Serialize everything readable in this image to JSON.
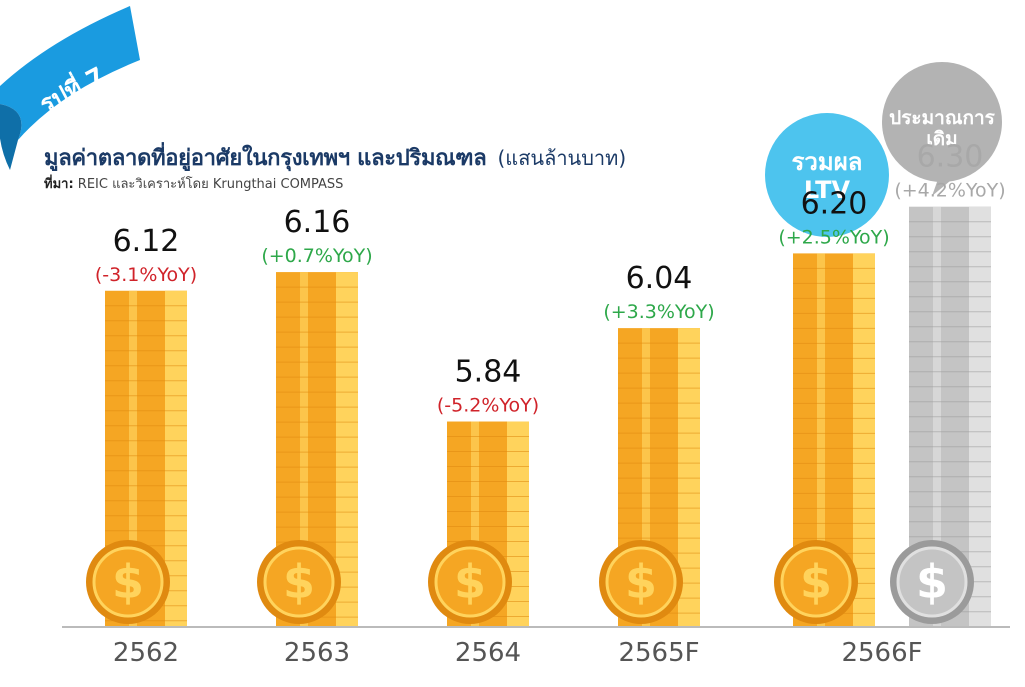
{
  "badge": {
    "text": "รูปที่ 7",
    "color": "#1a9be0"
  },
  "title": {
    "main": "มูลค่าตลาดที่อยู่อาศัยในกรุงเทพฯ และปริมณฑล",
    "unit": "(แสนล้านบาท)"
  },
  "source": {
    "label": "ที่มา:",
    "text": "REIC และวิเคราะห์โดย Krungthai COMPASS"
  },
  "callouts": {
    "ltv": {
      "line1": "รวมผล",
      "line2": "LTV",
      "color": "#4dc4ee"
    },
    "original": {
      "line1": "ประมาณการ",
      "line2": "เดิม",
      "color": "#b3b3b3"
    }
  },
  "colors": {
    "gold": "#f5a623",
    "gold_light": "#ffd35c",
    "gold_dark": "#e08a10",
    "grey": "#c4c4c4",
    "grey_light": "#e0e0e0",
    "grey_dark": "#9b9b9b",
    "negative": "#d0232a",
    "positive": "#2ea84a",
    "axis": "#bbbbbb",
    "label": "#555555"
  },
  "chart_data": {
    "type": "bar",
    "categories": [
      "2562",
      "2563",
      "2564",
      "2565F",
      "2566F",
      "2566F"
    ],
    "series": [
      {
        "name": "รวมผล LTV",
        "values": [
          6.12,
          6.16,
          5.84,
          6.04,
          6.2,
          null
        ]
      },
      {
        "name": "ประมาณการเดิม",
        "values": [
          null,
          null,
          null,
          null,
          null,
          6.3
        ]
      }
    ],
    "value_labels": [
      "6.12",
      "6.16",
      "5.84",
      "6.04",
      "6.20",
      "6.30"
    ],
    "yoy_labels": [
      "(-3.1%YoY)",
      "(+0.7%YoY)",
      "(-5.2%YoY)",
      "(+3.3%YoY)",
      "(+2.5%YoY)",
      "(+4.2%YoY)"
    ],
    "yoy_values": [
      -3.1,
      0.7,
      -5.2,
      3.3,
      2.5,
      4.2
    ],
    "x_labels": [
      "2562",
      "2563",
      "2564",
      "2565F",
      "2566F"
    ],
    "ylim": [
      5.4,
      6.4
    ],
    "coin_symbol": "$"
  }
}
